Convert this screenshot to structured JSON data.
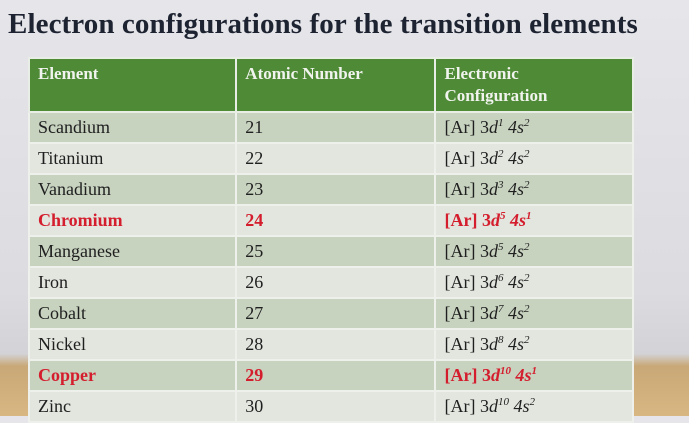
{
  "title": "Electron configurations for the transition elements",
  "headers": [
    "Element",
    "Atomic Number",
    "Electronic Configuration"
  ],
  "colors": {
    "header": "#4f8a36",
    "highlight": "#d41d2d"
  },
  "rows": [
    {
      "element": "Scandium",
      "number": "21",
      "core": "[Ar] 3",
      "d": "d",
      "d_exp": "1",
      "s": "4s",
      "s_exp": "2",
      "highlight": false
    },
    {
      "element": "Titanium",
      "number": "22",
      "core": "[Ar] 3",
      "d": "d",
      "d_exp": "2",
      "s": "4s",
      "s_exp": "2",
      "highlight": false
    },
    {
      "element": "Vanadium",
      "number": "23",
      "core": "[Ar] 3",
      "d": "d",
      "d_exp": "3",
      "s": "4s",
      "s_exp": "2",
      "highlight": false
    },
    {
      "element": "Chromium",
      "number": "24",
      "core": "[Ar] 3",
      "d": "d",
      "d_exp": "5",
      "s": "4s",
      "s_exp": "1",
      "highlight": true
    },
    {
      "element": "Manganese",
      "number": "25",
      "core": "[Ar] 3",
      "d": "d",
      "d_exp": "5",
      "s": "4s",
      "s_exp": "2",
      "highlight": false
    },
    {
      "element": "Iron",
      "number": "26",
      "core": "[Ar] 3",
      "d": "d",
      "d_exp": "6",
      "s": "4s",
      "s_exp": "2",
      "highlight": false
    },
    {
      "element": "Cobalt",
      "number": "27",
      "core": "[Ar] 3",
      "d": "d",
      "d_exp": "7",
      "s": "4s",
      "s_exp": "2",
      "highlight": false
    },
    {
      "element": "Nickel",
      "number": "28",
      "core": "[Ar] 3",
      "d": "d",
      "d_exp": "8",
      "s": "4s",
      "s_exp": "2",
      "highlight": false
    },
    {
      "element": "Copper",
      "number": "29",
      "core": "[Ar] 3",
      "d": "d",
      "d_exp": "10",
      "s": "4s",
      "s_exp": "1",
      "highlight": true
    },
    {
      "element": "Zinc",
      "number": "30",
      "core": "[Ar] 3",
      "d": "d",
      "d_exp": "10",
      "s": "4s",
      "s_exp": "2",
      "highlight": false
    }
  ]
}
